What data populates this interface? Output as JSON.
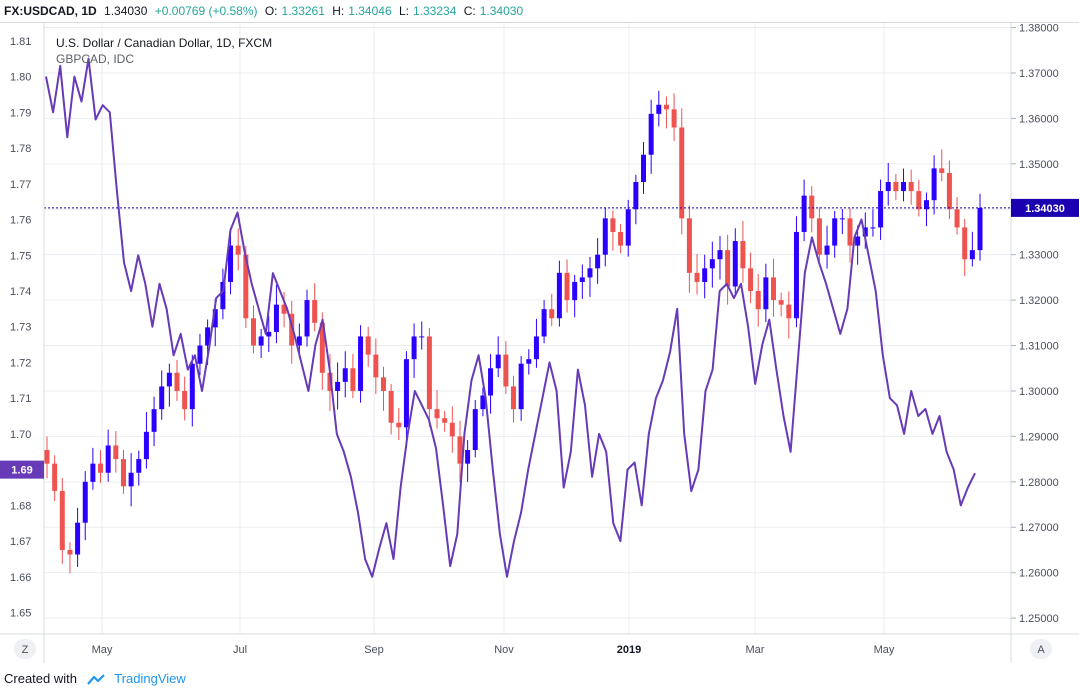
{
  "header": {
    "symbol": "FX:USDCAD, 1D",
    "last": "1.34030",
    "change": "+0.00769 (+0.58%)",
    "o_label": "O:",
    "o_value": "1.33261",
    "h_label": "H:",
    "h_value": "1.34046",
    "l_label": "L:",
    "l_value": "1.33234",
    "c_label": "C:",
    "c_value": "1.34030"
  },
  "footer": {
    "created_with": "Created with",
    "brand": "TradingView"
  },
  "buttons": {
    "left": "Z",
    "right": "A"
  },
  "colors": {
    "up_candle": "#2a00ff",
    "down_candle": "#ef5350",
    "line": "#673ab7",
    "price_line": "#1a00b0",
    "grid": "#e9edf2",
    "axis_text": "#4a4f5c",
    "up_text": "#26a69a"
  },
  "chart_data": {
    "type": "line",
    "legend": [
      {
        "label": "U.S. Dollar / Canadian Dollar, 1D, FXCM"
      },
      {
        "label": "GBPCAD, IDC"
      }
    ],
    "x_ticks": [
      "May",
      "Jul",
      "Sep",
      "Nov",
      "2019",
      "Mar",
      "May"
    ],
    "right_axis": {
      "ticks": [
        "1.38000",
        "1.37000",
        "1.36000",
        "1.35000",
        "1.34000",
        "1.33000",
        "1.32000",
        "1.31000",
        "1.30000",
        "1.29000",
        "1.28000",
        "1.27000",
        "1.26000",
        "1.25000"
      ],
      "last_value_label": "1.34030",
      "range": [
        1.2465,
        1.381
      ]
    },
    "left_axis": {
      "ticks": [
        "1.81",
        "1.80",
        "1.79",
        "1.78",
        "1.77",
        "1.76",
        "1.75",
        "1.74",
        "1.73",
        "1.72",
        "1.71",
        "1.70",
        "1.69",
        "1.68",
        "1.67",
        "1.66",
        "1.65"
      ],
      "last_value_label": "1.69",
      "range": [
        1.644,
        1.815
      ]
    },
    "series": [
      {
        "name": "U.S. Dollar / Canadian Dollar, 1D, FXCM",
        "kind": "candlestick",
        "axis": "right",
        "close_approx": [
          1.284,
          1.278,
          1.265,
          1.264,
          1.271,
          1.28,
          1.284,
          1.282,
          1.288,
          1.285,
          1.279,
          1.282,
          1.285,
          1.291,
          1.296,
          1.301,
          1.304,
          1.3,
          1.296,
          1.306,
          1.31,
          1.314,
          1.318,
          1.324,
          1.332,
          1.33,
          1.316,
          1.31,
          1.312,
          1.313,
          1.319,
          1.317,
          1.31,
          1.312,
          1.32,
          1.315,
          1.304,
          1.3,
          1.302,
          1.305,
          1.3,
          1.312,
          1.308,
          1.303,
          1.3,
          1.293,
          1.292,
          1.307,
          1.312,
          1.312,
          1.296,
          1.294,
          1.293,
          1.29,
          1.284,
          1.287,
          1.296,
          1.299,
          1.305,
          1.308,
          1.301,
          1.296,
          1.306,
          1.307,
          1.312,
          1.318,
          1.316,
          1.326,
          1.32,
          1.324,
          1.325,
          1.327,
          1.33,
          1.338,
          1.335,
          1.332,
          1.34,
          1.346,
          1.352,
          1.361,
          1.363,
          1.362,
          1.358,
          1.338,
          1.326,
          1.324,
          1.327,
          1.329,
          1.331,
          1.323,
          1.333,
          1.327,
          1.322,
          1.318,
          1.325,
          1.32,
          1.319,
          1.316,
          1.335,
          1.343,
          1.338,
          1.33,
          1.332,
          1.338,
          1.338,
          1.332,
          1.334,
          1.336,
          1.336,
          1.344,
          1.346,
          1.344,
          1.346,
          1.344,
          1.34,
          1.342,
          1.349,
          1.348,
          1.34,
          1.336,
          1.329,
          1.331,
          1.3403
        ]
      },
      {
        "name": "GBPCAD, IDC",
        "kind": "line",
        "axis": "left",
        "values": [
          1.8,
          1.79,
          1.803,
          1.783,
          1.8,
          1.793,
          1.805,
          1.788,
          1.792,
          1.79,
          1.768,
          1.748,
          1.74,
          1.75,
          1.742,
          1.73,
          1.742,
          1.735,
          1.722,
          1.728,
          1.718,
          1.722,
          1.712,
          1.724,
          1.738,
          1.74,
          1.757,
          1.762,
          1.751,
          1.742,
          1.735,
          1.728,
          1.745,
          1.74,
          1.735,
          1.728,
          1.72,
          1.712,
          1.725,
          1.732,
          1.718,
          1.7,
          1.695,
          1.688,
          1.678,
          1.665,
          1.66,
          1.668,
          1.675,
          1.665,
          1.685,
          1.7,
          1.712,
          1.708,
          1.704,
          1.696,
          1.68,
          1.663,
          1.672,
          1.7,
          1.715,
          1.722,
          1.71,
          1.69,
          1.672,
          1.66,
          1.67,
          1.678,
          1.69,
          1.7,
          1.71,
          1.72,
          1.712,
          1.685,
          1.695,
          1.718,
          1.708,
          1.688,
          1.7,
          1.695,
          1.675,
          1.67,
          1.69,
          1.692,
          1.68,
          1.7,
          1.71,
          1.715,
          1.723,
          1.735,
          1.7,
          1.684,
          1.69,
          1.712,
          1.718,
          1.74,
          1.742,
          1.738,
          1.742,
          1.73,
          1.714,
          1.725,
          1.732,
          1.718,
          1.705,
          1.695,
          1.72,
          1.745,
          1.755,
          1.748,
          1.742,
          1.735,
          1.728,
          1.735,
          1.755,
          1.76,
          1.75,
          1.74,
          1.722,
          1.71,
          1.708,
          1.7,
          1.712,
          1.705,
          1.707,
          1.7,
          1.705,
          1.695,
          1.69,
          1.68,
          1.685,
          1.689
        ]
      }
    ]
  }
}
